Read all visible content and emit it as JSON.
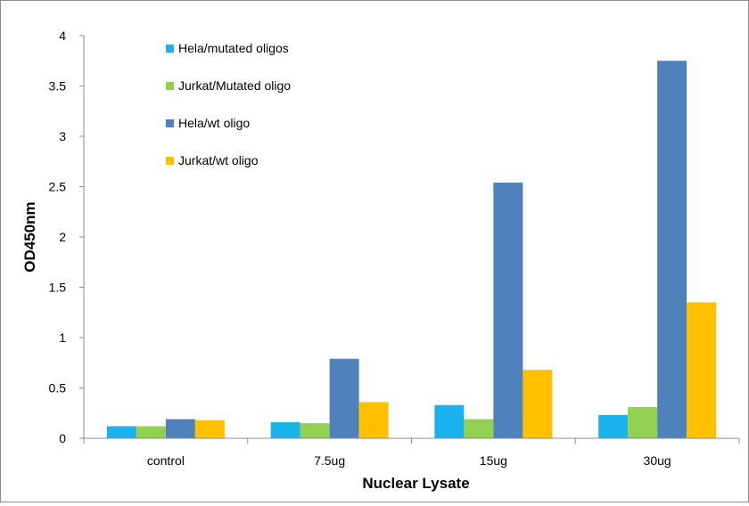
{
  "chart_data": {
    "type": "bar",
    "title": "",
    "xlabel": "Nuclear Lysate",
    "ylabel": "OD450nm",
    "ylim": [
      0,
      4
    ],
    "yticks": [
      0,
      0.5,
      1,
      1.5,
      2,
      2.5,
      3,
      3.5,
      4
    ],
    "ytick_labels": [
      "0",
      "0.5",
      "1",
      "1.5",
      "2",
      "2.5",
      "3",
      "3.5",
      "4"
    ],
    "grid": false,
    "legend_position": "top-left",
    "categories": [
      "control",
      "7.5ug",
      "15ug",
      "30ug"
    ],
    "series": [
      {
        "name": "Hela/mutated oligos",
        "color": "#1ab2ec",
        "values": [
          0.12,
          0.16,
          0.33,
          0.23
        ]
      },
      {
        "name": "Jurkat/Mutated oligo",
        "color": "#92d050",
        "values": [
          0.12,
          0.15,
          0.19,
          0.31
        ]
      },
      {
        "name": "Hela/wt oligo",
        "color": "#4f81bd",
        "values": [
          0.19,
          0.79,
          2.54,
          3.75
        ]
      },
      {
        "name": "Jurkat/wt oligo",
        "color": "#ffc000",
        "values": [
          0.18,
          0.36,
          0.68,
          1.35
        ]
      }
    ]
  }
}
